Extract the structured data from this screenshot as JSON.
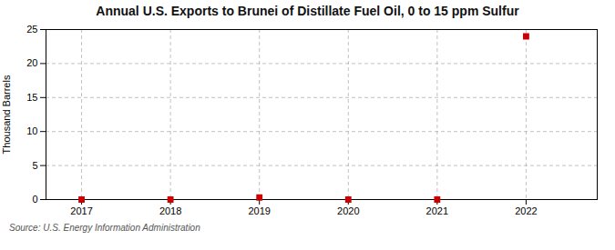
{
  "chart_data": {
    "type": "scatter",
    "title": "Annual U.S. Exports to Brunei of Distillate Fuel Oil, 0 to 15 ppm Sulfur",
    "ylabel": "Thousand Barrels",
    "source": "Source: U.S. Energy Information Administration",
    "x": [
      2017,
      2018,
      2019,
      2020,
      2021,
      2022
    ],
    "values": [
      0.0,
      0.0,
      0.3,
      0.0,
      0.0,
      24.0
    ],
    "color": "#cc0000",
    "marker": "square",
    "xlim": [
      2016.6,
      2022.8
    ],
    "ylim": [
      0,
      25
    ],
    "xticks": [
      2017,
      2018,
      2019,
      2020,
      2021,
      2022
    ],
    "yticks": [
      0,
      5,
      10,
      15,
      20,
      25
    ],
    "grid": true
  }
}
